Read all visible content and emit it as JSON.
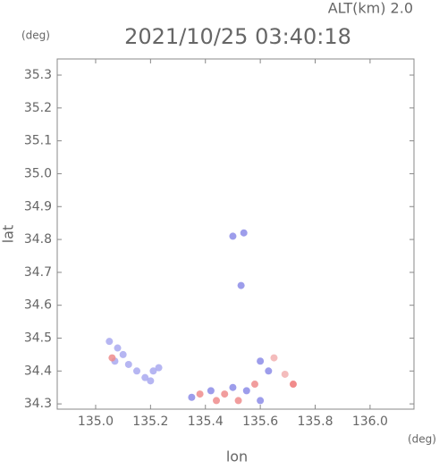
{
  "chart_data": {
    "type": "scatter",
    "title": "2021/10/25 03:40:18",
    "subtitle": "ALT(km) 2.0",
    "y_unit": "(deg)",
    "x_unit": "(deg)",
    "x_label": "lon",
    "y_label": "lat",
    "xlim": [
      134.86,
      136.16
    ],
    "ylim": [
      34.284,
      35.349
    ],
    "xticks": [
      {
        "value": 135.0,
        "label": "135.0"
      },
      135.2,
      135.4,
      135.6,
      135.8,
      {
        "value": 136.0,
        "label": "136.0"
      }
    ],
    "yticks": [
      34.3,
      34.4,
      34.5,
      34.6,
      34.7,
      34.8,
      34.9,
      {
        "value": 35.0,
        "label": "35.0"
      },
      35.1,
      35.2,
      35.3
    ],
    "x": [
      135.05,
      135.08,
      135.1,
      135.07,
      135.12,
      135.15,
      135.18,
      135.21,
      135.23,
      135.2,
      135.06,
      135.35,
      135.38,
      135.42,
      135.44,
      135.47,
      135.5,
      135.52,
      135.55,
      135.58,
      135.6,
      135.63,
      135.65,
      135.72,
      135.69,
      135.6,
      135.5,
      135.53,
      135.54
    ],
    "values": [
      34.49,
      34.47,
      34.45,
      34.43,
      34.42,
      34.4,
      34.38,
      34.4,
      34.41,
      34.37,
      34.44,
      34.32,
      34.33,
      34.34,
      34.31,
      34.33,
      34.35,
      34.31,
      34.34,
      34.36,
      34.31,
      34.4,
      34.44,
      34.36,
      34.39,
      34.43,
      34.81,
      34.66,
      34.82
    ],
    "colors": [
      "#a9a9f0",
      "#a9a9f0",
      "#a9a9f0",
      "#a9a9f0",
      "#a9a9f0",
      "#a9a9f0",
      "#a9a9f0",
      "#a9a9f0",
      "#a9a9f0",
      "#a9a9f0",
      "#ee8c8c",
      "#8c8ce8",
      "#ee8c8c",
      "#8c8ce8",
      "#ee8c8c",
      "#ee8c8c",
      "#8c8ce8",
      "#ee8c8c",
      "#8c8ce8",
      "#ee8c8c",
      "#8c8ce8",
      "#8c8ce8",
      "#f2b0b0",
      "#ee7777",
      "#f2b0b0",
      "#8c8ce8",
      "#8c8ce8",
      "#8c8ce8",
      "#8c8ce8"
    ]
  }
}
